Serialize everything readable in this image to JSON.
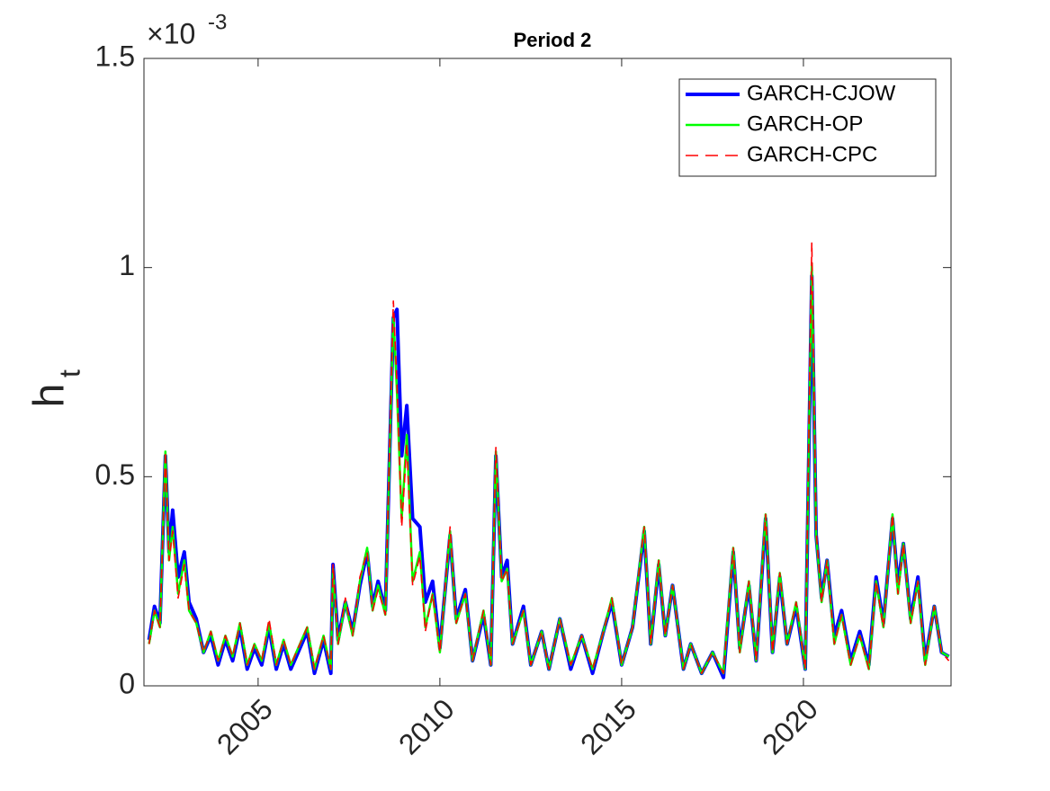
{
  "chart_data": {
    "type": "line",
    "title": "Period 2",
    "ylabel": "h",
    "ylabel_subscript": "t",
    "y_multiplier": "×10",
    "y_multiplier_exponent": "-3",
    "x": [
      2002.0,
      2002.15,
      2002.3,
      2002.45,
      2002.55,
      2002.65,
      2002.8,
      2002.97,
      2003.1,
      2003.3,
      2003.5,
      2003.7,
      2003.9,
      2004.1,
      2004.3,
      2004.5,
      2004.7,
      2004.9,
      2005.1,
      2005.3,
      2005.5,
      2005.7,
      2005.9,
      2006.1,
      2006.35,
      2006.55,
      2006.8,
      2007.0,
      2007.06,
      2007.2,
      2007.4,
      2007.6,
      2007.8,
      2008.0,
      2008.15,
      2008.3,
      2008.5,
      2008.72,
      2008.82,
      2008.95,
      2009.09,
      2009.25,
      2009.45,
      2009.6,
      2009.8,
      2010.0,
      2010.28,
      2010.45,
      2010.7,
      2010.9,
      2011.2,
      2011.4,
      2011.54,
      2011.7,
      2011.85,
      2012.0,
      2012.3,
      2012.5,
      2012.8,
      2013.0,
      2013.3,
      2013.6,
      2013.9,
      2014.2,
      2014.5,
      2014.73,
      2015.0,
      2015.3,
      2015.62,
      2015.8,
      2016.02,
      2016.2,
      2016.4,
      2016.7,
      2016.9,
      2017.2,
      2017.5,
      2017.8,
      2018.07,
      2018.25,
      2018.5,
      2018.7,
      2018.96,
      2019.15,
      2019.35,
      2019.55,
      2019.8,
      2020.05,
      2020.23,
      2020.35,
      2020.5,
      2020.65,
      2020.85,
      2021.05,
      2021.3,
      2021.55,
      2021.8,
      2022.0,
      2022.2,
      2022.45,
      2022.6,
      2022.75,
      2022.95,
      2023.15,
      2023.35,
      2023.6,
      2023.8,
      2024.0
    ],
    "series": [
      {
        "name": "GARCH-CJOW",
        "color": "#0000ff",
        "values": [
          0.11,
          0.19,
          0.15,
          0.55,
          0.32,
          0.42,
          0.26,
          0.32,
          0.2,
          0.16,
          0.08,
          0.12,
          0.05,
          0.11,
          0.06,
          0.14,
          0.04,
          0.09,
          0.05,
          0.14,
          0.04,
          0.1,
          0.04,
          0.08,
          0.13,
          0.03,
          0.11,
          0.03,
          0.29,
          0.11,
          0.2,
          0.13,
          0.24,
          0.32,
          0.19,
          0.25,
          0.18,
          0.88,
          0.9,
          0.55,
          0.67,
          0.4,
          0.38,
          0.2,
          0.25,
          0.09,
          0.36,
          0.16,
          0.23,
          0.06,
          0.17,
          0.05,
          0.55,
          0.26,
          0.3,
          0.1,
          0.19,
          0.05,
          0.13,
          0.04,
          0.16,
          0.04,
          0.12,
          0.03,
          0.13,
          0.2,
          0.05,
          0.14,
          0.37,
          0.1,
          0.29,
          0.12,
          0.24,
          0.04,
          0.1,
          0.03,
          0.08,
          0.02,
          0.32,
          0.09,
          0.24,
          0.06,
          0.4,
          0.08,
          0.26,
          0.1,
          0.19,
          0.04,
          0.98,
          0.36,
          0.21,
          0.3,
          0.12,
          0.18,
          0.06,
          0.13,
          0.05,
          0.26,
          0.15,
          0.4,
          0.24,
          0.34,
          0.16,
          0.26,
          0.06,
          0.19,
          0.08,
          0.07
        ]
      },
      {
        "name": "GARCH-OP",
        "color": "#00ff00",
        "values": [
          0.1,
          0.18,
          0.14,
          0.56,
          0.3,
          0.38,
          0.22,
          0.3,
          0.18,
          0.15,
          0.08,
          0.13,
          0.06,
          0.12,
          0.07,
          0.15,
          0.05,
          0.1,
          0.06,
          0.15,
          0.05,
          0.11,
          0.05,
          0.09,
          0.14,
          0.04,
          0.12,
          0.04,
          0.28,
          0.1,
          0.2,
          0.12,
          0.25,
          0.33,
          0.18,
          0.24,
          0.17,
          0.89,
          0.7,
          0.4,
          0.6,
          0.25,
          0.32,
          0.14,
          0.22,
          0.08,
          0.37,
          0.15,
          0.22,
          0.06,
          0.18,
          0.05,
          0.56,
          0.25,
          0.28,
          0.1,
          0.18,
          0.05,
          0.13,
          0.04,
          0.16,
          0.05,
          0.12,
          0.04,
          0.13,
          0.21,
          0.05,
          0.14,
          0.38,
          0.1,
          0.3,
          0.12,
          0.24,
          0.04,
          0.1,
          0.03,
          0.08,
          0.03,
          0.33,
          0.08,
          0.25,
          0.06,
          0.41,
          0.08,
          0.27,
          0.1,
          0.2,
          0.04,
          1.01,
          0.36,
          0.2,
          0.3,
          0.1,
          0.17,
          0.05,
          0.12,
          0.04,
          0.25,
          0.14,
          0.41,
          0.22,
          0.34,
          0.15,
          0.25,
          0.05,
          0.19,
          0.08,
          0.07
        ]
      },
      {
        "name": "GARCH-CPC",
        "color": "#ff0000",
        "dashed": true,
        "values": [
          0.1,
          0.18,
          0.14,
          0.56,
          0.3,
          0.37,
          0.21,
          0.29,
          0.18,
          0.15,
          0.08,
          0.13,
          0.06,
          0.12,
          0.07,
          0.15,
          0.05,
          0.1,
          0.06,
          0.16,
          0.05,
          0.11,
          0.05,
          0.09,
          0.14,
          0.04,
          0.12,
          0.04,
          0.29,
          0.1,
          0.21,
          0.12,
          0.26,
          0.32,
          0.18,
          0.23,
          0.17,
          0.92,
          0.72,
          0.38,
          0.58,
          0.24,
          0.31,
          0.13,
          0.22,
          0.08,
          0.38,
          0.15,
          0.22,
          0.06,
          0.18,
          0.05,
          0.57,
          0.25,
          0.28,
          0.1,
          0.18,
          0.05,
          0.13,
          0.04,
          0.16,
          0.05,
          0.12,
          0.04,
          0.13,
          0.21,
          0.05,
          0.14,
          0.38,
          0.1,
          0.3,
          0.12,
          0.24,
          0.04,
          0.1,
          0.03,
          0.08,
          0.03,
          0.33,
          0.08,
          0.25,
          0.06,
          0.41,
          0.08,
          0.27,
          0.1,
          0.2,
          0.04,
          1.06,
          0.37,
          0.2,
          0.3,
          0.1,
          0.17,
          0.05,
          0.12,
          0.04,
          0.25,
          0.14,
          0.41,
          0.22,
          0.34,
          0.15,
          0.25,
          0.05,
          0.19,
          0.08,
          0.06
        ]
      }
    ],
    "xlim": [
      2001.86,
      2024.06
    ],
    "xticks": [
      2005,
      2010,
      2015,
      2020
    ],
    "ylim": [
      0,
      1.5
    ],
    "yticks": [
      0,
      0.5,
      1,
      1.5
    ],
    "legend": "northeast",
    "grid": false
  }
}
